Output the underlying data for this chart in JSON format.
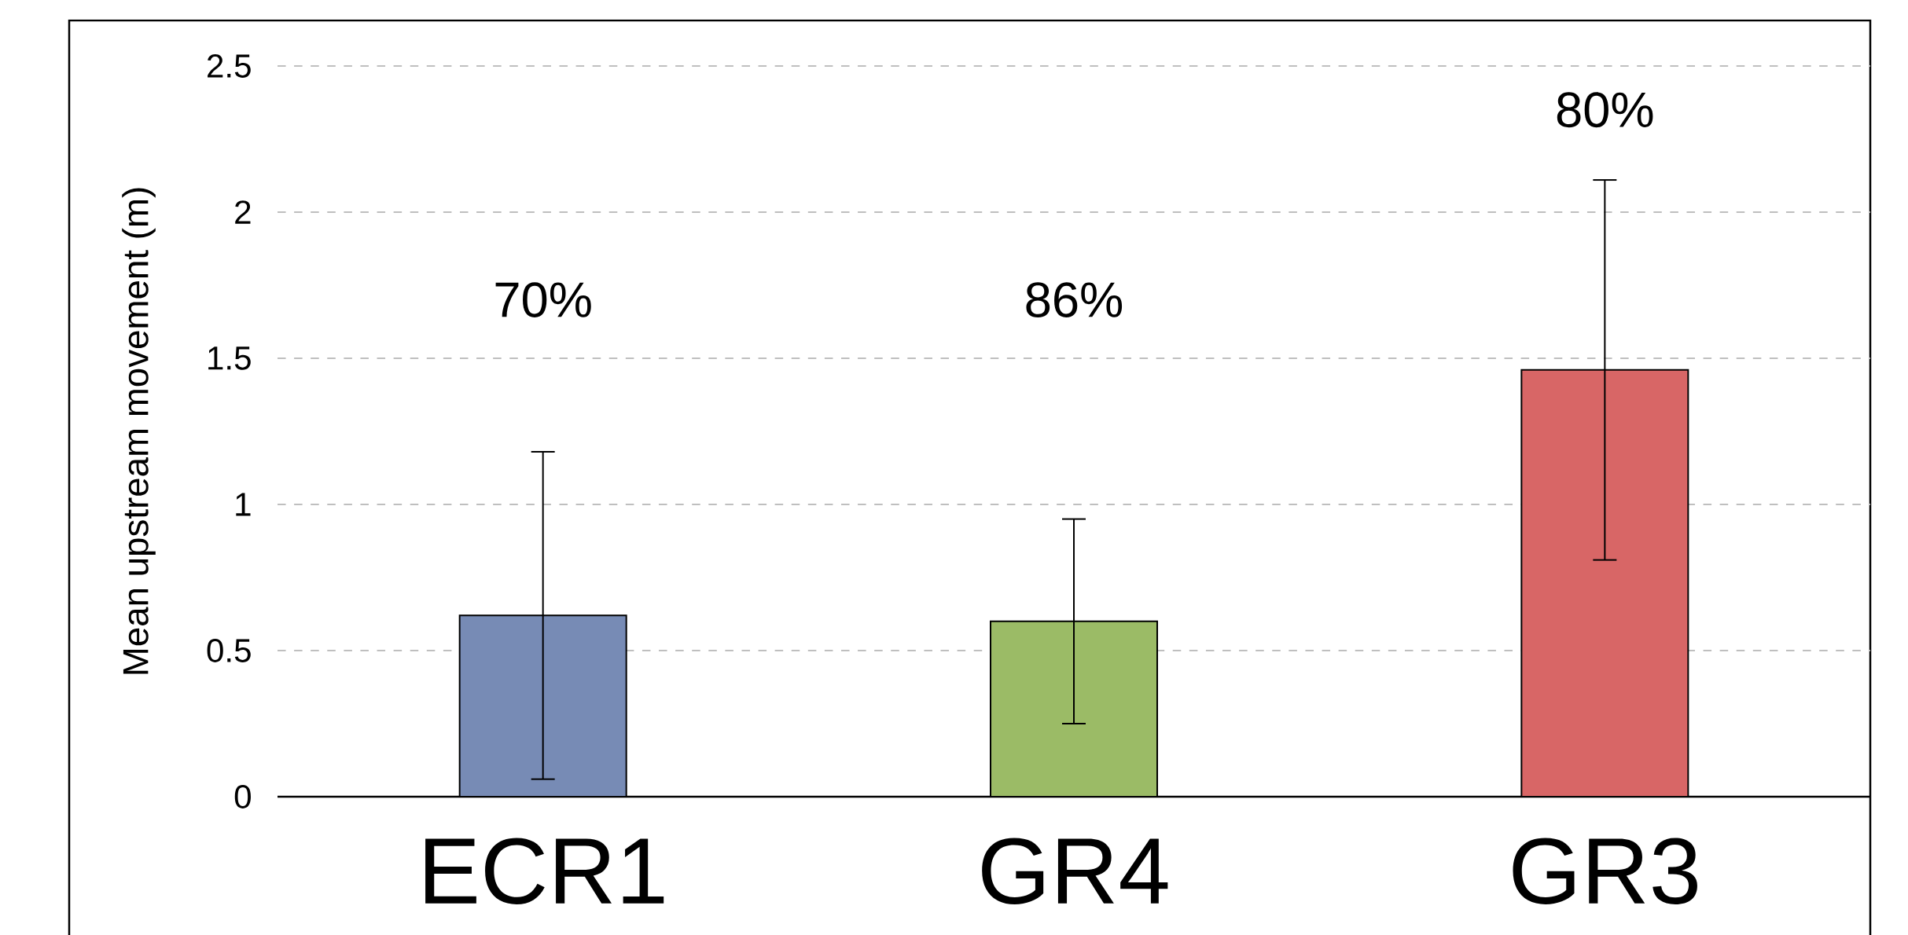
{
  "chart_data": {
    "type": "bar",
    "ylabel": "Mean upstream movement (m)",
    "categories": [
      "ECR1",
      "GR4",
      "GR3"
    ],
    "values": [
      0.62,
      0.6,
      1.46
    ],
    "errors": [
      0.56,
      0.35,
      0.65
    ],
    "colors": [
      "#778bb5",
      "#9bbb66",
      "#d86666"
    ],
    "ylim": [
      0,
      2.5
    ],
    "yticks": [
      0,
      0.5,
      1,
      1.5,
      2,
      2.5
    ],
    "grid": "y",
    "annotations": [
      "70%",
      "86%",
      "80%"
    ]
  }
}
